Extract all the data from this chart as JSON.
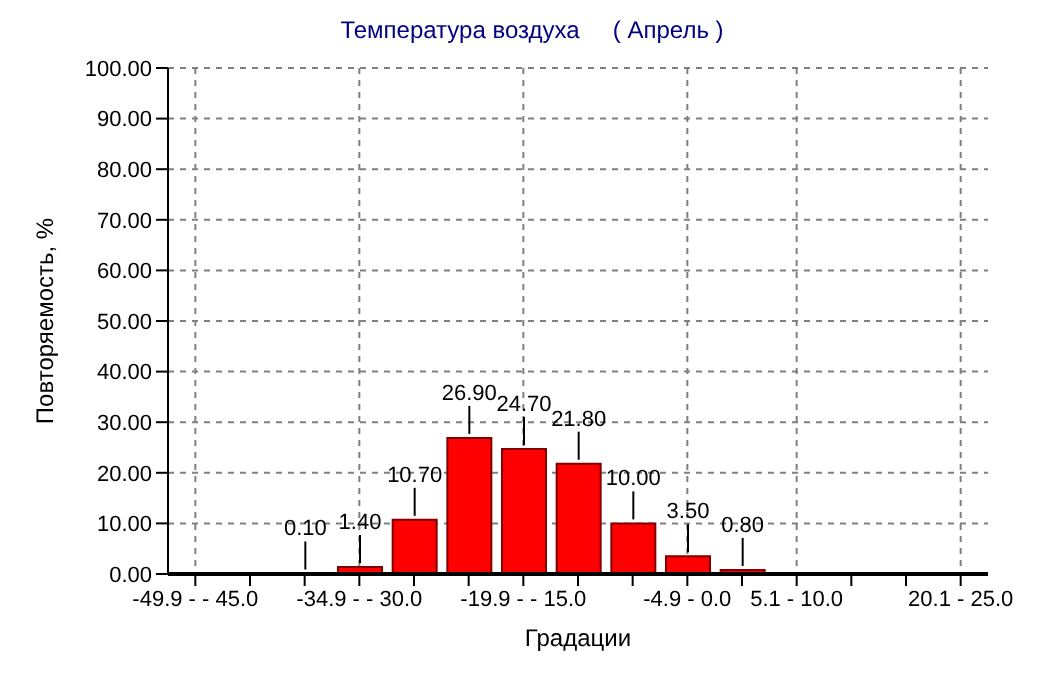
{
  "chart_data": {
    "type": "bar",
    "title": "Температура воздуха     ( Апрель )",
    "xlabel": "Градации",
    "ylabel": "Повторяемость, %",
    "categories": [
      "-49.9 -  - 45.0",
      null,
      null,
      "-34.9 -  - 30.0",
      null,
      null,
      "-19.9 -  - 15.0",
      null,
      null,
      "-4.9 - 0.0",
      null,
      "5.1 - 10.0",
      null,
      null,
      "20.1 - 25.0"
    ],
    "values": [
      0,
      0,
      0.1,
      1.4,
      10.7,
      26.9,
      24.7,
      21.8,
      10.0,
      3.5,
      0.8,
      0,
      0,
      0,
      0
    ],
    "value_labels": [
      null,
      null,
      "0.10",
      "1.40",
      "10.70",
      "26.90",
      "24.70",
      "21.80",
      "10.00",
      "3.50",
      "0.80",
      null,
      null,
      null,
      null
    ],
    "color": "#ff0000",
    "ylim": [
      0,
      100
    ],
    "yticks": [
      {
        "value": 0,
        "label": "0.00"
      },
      {
        "value": 10,
        "label": "10.00"
      },
      {
        "value": 20,
        "label": "20.00"
      },
      {
        "value": 30,
        "label": "30.00"
      },
      {
        "value": 40,
        "label": "40.00"
      },
      {
        "value": 50,
        "label": "50.00"
      },
      {
        "value": 60,
        "label": "60.00"
      },
      {
        "value": 70,
        "label": "70.00"
      },
      {
        "value": 80,
        "label": "80.00"
      },
      {
        "value": 90,
        "label": "90.00"
      },
      {
        "value": 100,
        "label": "100.00"
      }
    ],
    "grid": true
  }
}
